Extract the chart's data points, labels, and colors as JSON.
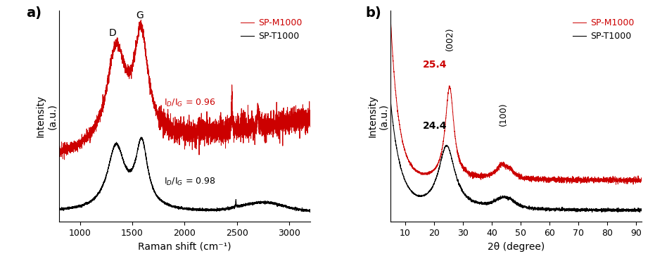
{
  "panel_a": {
    "title_label": "a)",
    "xlabel": "Raman shift (cm⁻¹)",
    "ylabel": "Intensity\n(a.u.)",
    "xlim": [
      800,
      3200
    ],
    "xticks": [
      1000,
      1500,
      2000,
      2500,
      3000
    ],
    "legend_red": "SP-M1000",
    "legend_black": "SP-T1000",
    "annotation_red": "I$_D$/I$_G$ = 0.96",
    "annotation_black": "I$_D$/I$_G$ = 0.98",
    "label_D": "D",
    "label_G": "G",
    "red_color": "#cc0000",
    "black_color": "#000000"
  },
  "panel_b": {
    "title_label": "b)",
    "xlabel": "2θ (degree)",
    "ylabel": "Intensity\n(a.u.)",
    "xlim": [
      5,
      92
    ],
    "xticks": [
      10,
      20,
      30,
      40,
      50,
      60,
      70,
      80,
      90
    ],
    "legend_red": "SP-M1000",
    "legend_black": "SP-T1000",
    "annotation_red": "25.4",
    "annotation_black": "24.4",
    "label_002": "(002)",
    "label_100": "(100)",
    "red_color": "#cc0000",
    "black_color": "#000000"
  }
}
